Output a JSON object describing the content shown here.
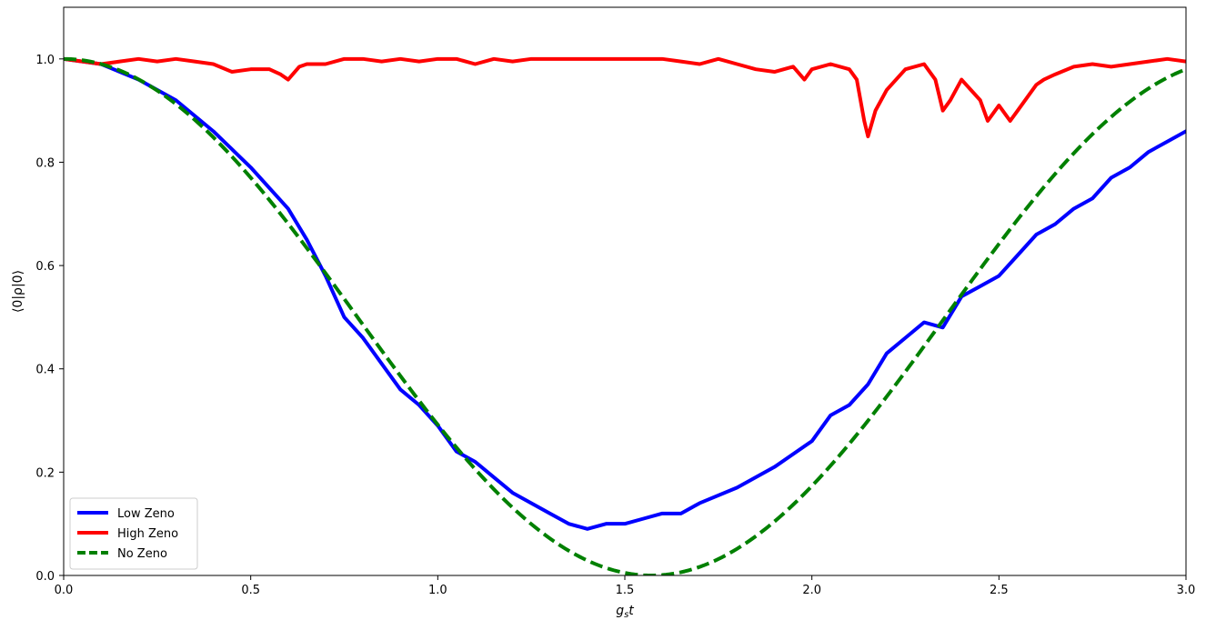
{
  "chart_data": {
    "type": "line",
    "title": "",
    "xlabel": "g_s t",
    "xlabel_main": "g",
    "xlabel_sub": "s",
    "xlabel_tail": "t",
    "ylabel": "⟨0|ρ|0⟩",
    "xlim": [
      0.0,
      3.0
    ],
    "ylim": [
      0.0,
      1.1
    ],
    "xticks": [
      0.0,
      0.5,
      1.0,
      1.5,
      2.0,
      2.5,
      3.0
    ],
    "xtick_labels": [
      "0.0",
      "0.5",
      "1.0",
      "1.5",
      "2.0",
      "2.5",
      "3.0"
    ],
    "yticks": [
      0.0,
      0.2,
      0.4,
      0.6,
      0.8,
      1.0
    ],
    "ytick_labels": [
      "0.0",
      "0.2",
      "0.4",
      "0.6",
      "0.8",
      "1.0"
    ],
    "grid": false,
    "legend_position": "lower-left",
    "series": [
      {
        "name": "Low Zeno",
        "color": "#0000ff",
        "dash": "solid",
        "x": [
          0.0,
          0.1,
          0.2,
          0.3,
          0.4,
          0.5,
          0.6,
          0.65,
          0.7,
          0.75,
          0.8,
          0.85,
          0.9,
          0.95,
          1.0,
          1.05,
          1.1,
          1.15,
          1.2,
          1.25,
          1.3,
          1.35,
          1.4,
          1.45,
          1.5,
          1.55,
          1.6,
          1.65,
          1.7,
          1.8,
          1.9,
          2.0,
          2.05,
          2.1,
          2.15,
          2.2,
          2.25,
          2.3,
          2.35,
          2.4,
          2.45,
          2.5,
          2.55,
          2.6,
          2.65,
          2.7,
          2.75,
          2.8,
          2.85,
          2.9,
          2.95,
          3.0
        ],
        "y": [
          1.0,
          0.99,
          0.96,
          0.92,
          0.86,
          0.79,
          0.71,
          0.65,
          0.58,
          0.5,
          0.46,
          0.41,
          0.36,
          0.33,
          0.29,
          0.24,
          0.22,
          0.19,
          0.16,
          0.14,
          0.12,
          0.1,
          0.09,
          0.1,
          0.1,
          0.11,
          0.12,
          0.12,
          0.14,
          0.17,
          0.21,
          0.26,
          0.31,
          0.33,
          0.37,
          0.43,
          0.46,
          0.49,
          0.48,
          0.54,
          0.56,
          0.58,
          0.62,
          0.66,
          0.68,
          0.71,
          0.73,
          0.77,
          0.79,
          0.82,
          0.84,
          0.86
        ]
      },
      {
        "name": "High Zeno",
        "color": "#ff0000",
        "dash": "solid",
        "x": [
          0.0,
          0.05,
          0.1,
          0.15,
          0.2,
          0.25,
          0.3,
          0.35,
          0.4,
          0.45,
          0.5,
          0.55,
          0.58,
          0.6,
          0.63,
          0.65,
          0.7,
          0.75,
          0.8,
          0.85,
          0.9,
          0.95,
          1.0,
          1.05,
          1.1,
          1.15,
          1.2,
          1.25,
          1.3,
          1.35,
          1.4,
          1.45,
          1.5,
          1.55,
          1.6,
          1.65,
          1.7,
          1.75,
          1.8,
          1.85,
          1.9,
          1.95,
          1.98,
          2.0,
          2.05,
          2.1,
          2.12,
          2.14,
          2.15,
          2.17,
          2.2,
          2.25,
          2.3,
          2.33,
          2.35,
          2.37,
          2.4,
          2.45,
          2.47,
          2.5,
          2.53,
          2.55,
          2.58,
          2.6,
          2.62,
          2.65,
          2.7,
          2.75,
          2.8,
          2.85,
          2.9,
          2.95,
          3.0
        ],
        "y": [
          1.0,
          0.995,
          0.99,
          0.995,
          1.0,
          0.995,
          1.0,
          0.995,
          0.99,
          0.975,
          0.98,
          0.98,
          0.97,
          0.96,
          0.985,
          0.99,
          0.99,
          1.0,
          1.0,
          0.995,
          1.0,
          0.995,
          1.0,
          1.0,
          0.99,
          1.0,
          0.995,
          1.0,
          1.0,
          1.0,
          1.0,
          1.0,
          1.0,
          1.0,
          1.0,
          0.995,
          0.99,
          1.0,
          0.99,
          0.98,
          0.975,
          0.985,
          0.96,
          0.98,
          0.99,
          0.98,
          0.96,
          0.88,
          0.85,
          0.9,
          0.94,
          0.98,
          0.99,
          0.96,
          0.9,
          0.92,
          0.96,
          0.92,
          0.88,
          0.91,
          0.88,
          0.9,
          0.93,
          0.95,
          0.96,
          0.97,
          0.985,
          0.99,
          0.985,
          0.99,
          0.995,
          1.0,
          0.995
        ]
      },
      {
        "name": "No Zeno",
        "color": "#008000",
        "dash": "dashed",
        "formula": "cos^2",
        "x": [
          0.0,
          3.0
        ],
        "y": [
          1.0,
          0.98
        ]
      }
    ]
  }
}
